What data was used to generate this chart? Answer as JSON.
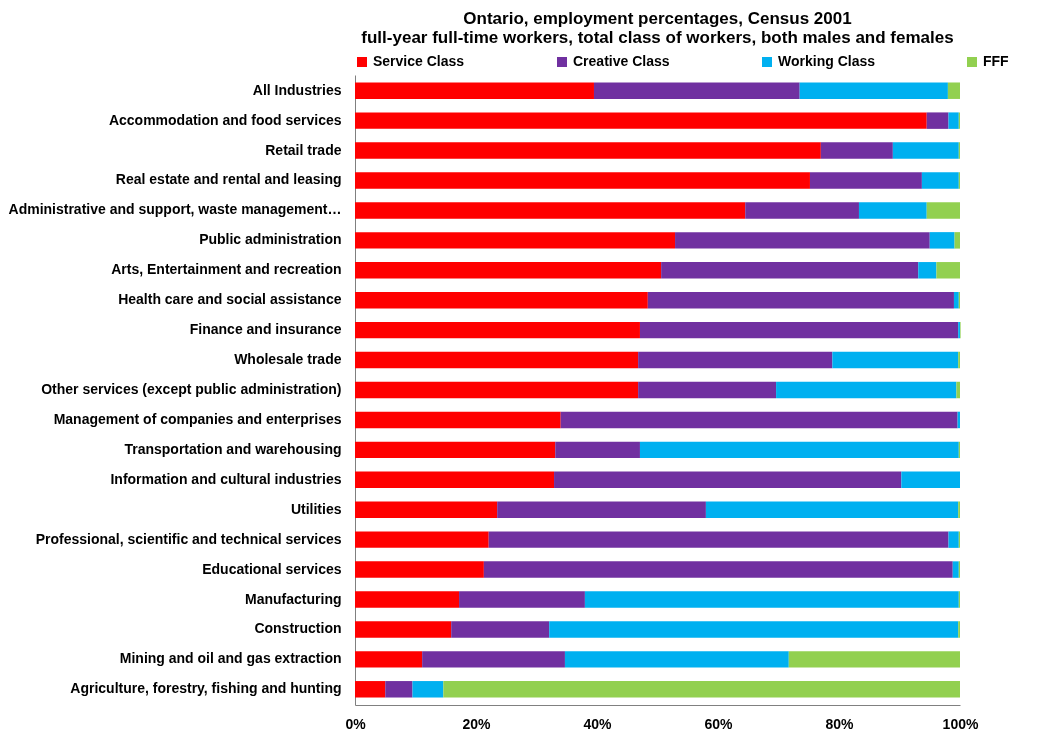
{
  "chart_data": {
    "type": "bar",
    "orientation": "horizontal",
    "stacked": true,
    "title": "Ontario, employment percentages, Census 2001\nfull-year full-time workers, total class of workers, both males and females",
    "categories": [
      "All Industries",
      "Accommodation and food services",
      "Retail trade",
      "Real estate and rental and leasing",
      "Administrative and support, waste management…",
      "Public administration",
      "Arts, Entertainment and recreation",
      "Health care and social assistance",
      "Finance and insurance",
      "Wholesale trade",
      "Other services (except public administration)",
      "Management of companies and enterprises",
      "Transportation and warehousing",
      "Information and cultural industries",
      "Utilities",
      "Professional, scientific and technical services",
      "Educational services",
      "Manufacturing",
      "Construction",
      "Mining and oil and gas extraction",
      "Agriculture, forestry, fishing and hunting"
    ],
    "series": [
      {
        "name": "Service Class",
        "color": "#ff0000",
        "values": [
          39.5,
          94.5,
          77.0,
          75.2,
          64.5,
          52.9,
          50.6,
          48.4,
          47.1,
          46.8,
          46.8,
          34.0,
          33.1,
          32.9,
          23.5,
          22.1,
          21.3,
          17.2,
          15.9,
          11.1,
          5.0
        ]
      },
      {
        "name": "Creative Class",
        "color": "#7030a0",
        "values": [
          34.0,
          3.6,
          11.9,
          18.5,
          18.8,
          42.1,
          42.5,
          50.6,
          52.6,
          32.1,
          22.8,
          65.6,
          14.0,
          57.4,
          34.5,
          76.0,
          77.5,
          20.8,
          16.2,
          23.6,
          4.5
        ]
      },
      {
        "name": "Working Class",
        "color": "#00b0f0",
        "values": [
          24.5,
          1.7,
          10.9,
          6.1,
          11.2,
          4.1,
          3.0,
          0.8,
          0.3,
          20.8,
          29.8,
          0.4,
          52.7,
          9.7,
          41.7,
          1.7,
          1.0,
          61.8,
          67.6,
          37.0,
          5.1
        ]
      },
      {
        "name": "FFF",
        "color": "#92d050",
        "values": [
          2.0,
          0.2,
          0.2,
          0.2,
          5.5,
          0.9,
          3.9,
          0.2,
          0.1,
          0.3,
          0.6,
          0.0,
          0.2,
          0.0,
          0.3,
          0.2,
          0.2,
          0.2,
          0.3,
          28.3,
          85.4
        ]
      }
    ],
    "xlim": [
      0,
      100
    ],
    "xticks": [
      {
        "value": 0,
        "label": "0%"
      },
      {
        "value": 20,
        "label": "20%"
      },
      {
        "value": 40,
        "label": "40%"
      },
      {
        "value": 60,
        "label": "60%"
      },
      {
        "value": 80,
        "label": "80%"
      },
      {
        "value": 100,
        "label": "100%"
      }
    ],
    "legend": "top",
    "grid": false
  }
}
